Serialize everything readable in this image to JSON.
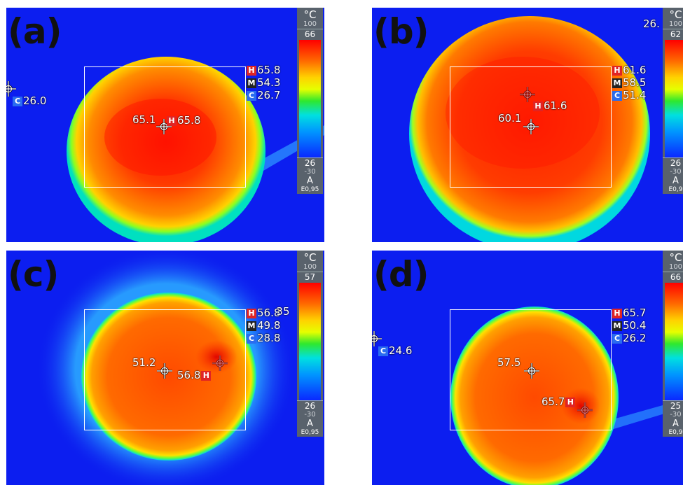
{
  "panels": [
    {
      "label": "(a)",
      "roi_stats": {
        "hot": "65.8",
        "mean": "54.3",
        "cold": "26.7"
      },
      "tags": {
        "hot": "H",
        "mean": "M",
        "cold": "C"
      },
      "spot_values": [
        "65.1",
        "65.8"
      ],
      "outside_cold": "26.0",
      "scale": {
        "unit": "°C",
        "range_max": "100",
        "span_max": "66",
        "span_min": "26",
        "range_min": "-30",
        "mode": "A",
        "emissivity": "E0,95"
      }
    },
    {
      "label": "(b)",
      "roi_stats": {
        "hot": "61.6",
        "mean": "58.5",
        "cold": "51.4"
      },
      "tags": {
        "hot": "H",
        "mean": "M",
        "cold": "C"
      },
      "spot_values": [
        "61.6",
        "60.1"
      ],
      "corner_text": "26.",
      "scale": {
        "unit": "°C",
        "range_max": "100",
        "span_max": "62",
        "span_min": "26",
        "range_min": "-30",
        "mode": "A",
        "emissivity": "E0,9"
      }
    },
    {
      "label": "(c)",
      "roi_stats": {
        "hot": "56.8",
        "mean": "49.8",
        "cold": "28.8"
      },
      "tags": {
        "hot": "H",
        "mean": "M",
        "cold": "C"
      },
      "spot_values": [
        "51.2",
        "56.8"
      ],
      "overlap_text": "35",
      "scale": {
        "unit": "°C",
        "range_max": "100",
        "span_max": "57",
        "span_min": "26",
        "range_min": "-30",
        "mode": "A",
        "emissivity": "E0,95"
      }
    },
    {
      "label": "(d)",
      "roi_stats": {
        "hot": "65.7",
        "mean": "50.4",
        "cold": "26.2"
      },
      "tags": {
        "hot": "H",
        "mean": "M",
        "cold": "C"
      },
      "spot_values": [
        "57.5",
        "65.7"
      ],
      "outside_cold": "24.6",
      "scale": {
        "unit": "°C",
        "range_max": "100",
        "span_max": "66",
        "span_min": "25",
        "range_min": "-30",
        "mode": "A",
        "emissivity": "E0,9"
      }
    }
  ],
  "colors": {
    "background_cold": "#0c1ef0",
    "roi_outline": "#ffffff",
    "hot_tag": "#e02424",
    "cold_tag": "#2a6cf0"
  }
}
